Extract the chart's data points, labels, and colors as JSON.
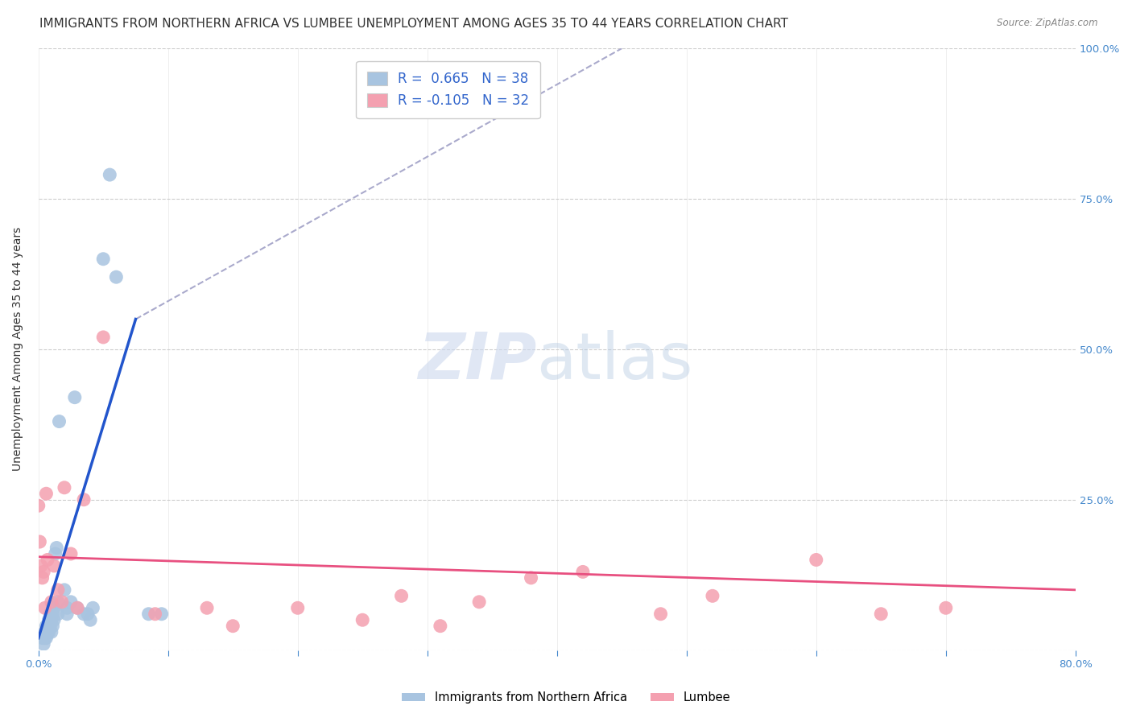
{
  "title": "IMMIGRANTS FROM NORTHERN AFRICA VS LUMBEE UNEMPLOYMENT AMONG AGES 35 TO 44 YEARS CORRELATION CHART",
  "source": "Source: ZipAtlas.com",
  "ylabel": "Unemployment Among Ages 35 to 44 years",
  "xlim": [
    0,
    80.0
  ],
  "ylim": [
    0,
    100.0
  ],
  "xticks": [
    0.0,
    10.0,
    20.0,
    30.0,
    40.0,
    50.0,
    60.0,
    70.0,
    80.0
  ],
  "xticklabels": [
    "0.0%",
    "",
    "",
    "",
    "",
    "",
    "",
    "",
    "80.0%"
  ],
  "yticks": [
    0.0,
    25.0,
    50.0,
    75.0,
    100.0
  ],
  "yticklabels_right": [
    "",
    "25.0%",
    "50.0%",
    "75.0%",
    "100.0%"
  ],
  "blue_R": 0.665,
  "blue_N": 38,
  "pink_R": -0.105,
  "pink_N": 32,
  "blue_color": "#a8c4e0",
  "pink_color": "#f4a0b0",
  "blue_line_color": "#2255cc",
  "pink_line_color": "#e85080",
  "legend_label_blue": "Immigrants from Northern Africa",
  "legend_label_pink": "Lumbee",
  "blue_scatter_x": [
    0.3,
    0.4,
    0.5,
    0.5,
    0.6,
    0.6,
    0.7,
    0.7,
    0.8,
    0.8,
    0.9,
    0.9,
    1.0,
    1.0,
    1.1,
    1.1,
    1.2,
    1.2,
    1.3,
    1.4,
    1.5,
    1.5,
    1.6,
    2.0,
    2.2,
    2.2,
    2.5,
    2.8,
    3.0,
    3.5,
    3.8,
    4.0,
    4.2,
    5.0,
    5.5,
    6.0,
    8.5,
    9.5
  ],
  "blue_scatter_y": [
    2.0,
    1.0,
    3.0,
    2.0,
    4.0,
    2.0,
    3.0,
    4.0,
    5.0,
    3.0,
    4.0,
    6.0,
    5.0,
    3.0,
    6.0,
    4.0,
    7.0,
    5.0,
    16.0,
    17.0,
    8.0,
    6.0,
    38.0,
    10.0,
    7.0,
    6.0,
    8.0,
    42.0,
    7.0,
    6.0,
    6.0,
    5.0,
    7.0,
    65.0,
    79.0,
    62.0,
    6.0,
    6.0
  ],
  "pink_scatter_x": [
    0.0,
    0.1,
    0.2,
    0.3,
    0.4,
    0.5,
    0.6,
    0.7,
    1.0,
    1.2,
    1.5,
    1.8,
    2.0,
    2.5,
    3.0,
    3.5,
    5.0,
    9.0,
    13.0,
    15.0,
    20.0,
    25.0,
    28.0,
    31.0,
    34.0,
    38.0,
    42.0,
    48.0,
    52.0,
    60.0,
    65.0,
    70.0
  ],
  "pink_scatter_y": [
    24.0,
    18.0,
    14.0,
    12.0,
    13.0,
    7.0,
    26.0,
    15.0,
    8.0,
    14.0,
    10.0,
    8.0,
    27.0,
    16.0,
    7.0,
    25.0,
    52.0,
    6.0,
    7.0,
    4.0,
    7.0,
    5.0,
    9.0,
    4.0,
    8.0,
    12.0,
    13.0,
    6.0,
    9.0,
    15.0,
    6.0,
    7.0
  ],
  "blue_trend_x": [
    0.0,
    7.5
  ],
  "blue_trend_y": [
    2.0,
    55.0
  ],
  "dash_line_x": [
    7.5,
    45.0
  ],
  "dash_line_y": [
    55.0,
    100.0
  ],
  "pink_trend_x": [
    0.0,
    80.0
  ],
  "pink_trend_y": [
    15.5,
    10.0
  ],
  "title_fontsize": 11,
  "axis_fontsize": 10,
  "tick_fontsize": 9.5
}
